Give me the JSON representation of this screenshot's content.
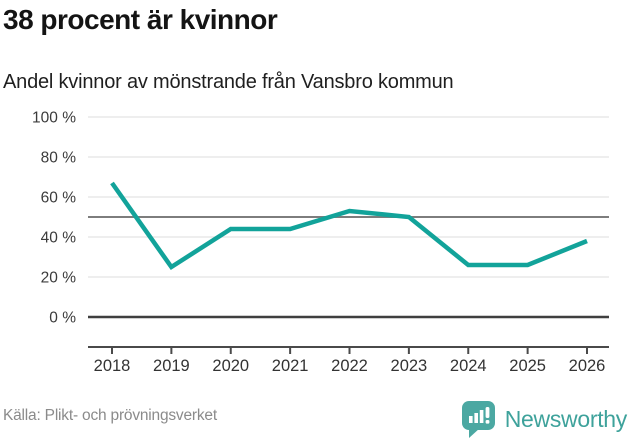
{
  "header": {
    "title": "38 procent är kvinnor",
    "subtitle": "Andel kvinnor av mönstrande från Vansbro kommun"
  },
  "footer": {
    "source": "Källa: Plikt- och prövningsverket",
    "brand": "Newsworthy",
    "brand_icon": "bar-chart-badge-icon"
  },
  "colors": {
    "line": "#12A39A",
    "grid_light": "#e3e3e3",
    "grid_mid": "#7d7d7d",
    "grid_zero": "#3f3f3f",
    "axis": "#4a4a4a",
    "tick_label": "#3b3b3b",
    "brand_teal": "#4BA8A2",
    "brand_text": "#3EA29B",
    "title_text": "#141414",
    "source_text": "#8b8b8b"
  },
  "chart_data": {
    "type": "line",
    "title": "38 procent är kvinnor",
    "subtitle": "Andel kvinnor av mönstrande från Vansbro kommun",
    "categories": [
      "2018",
      "2019",
      "2020",
      "2021",
      "2022",
      "2023",
      "2024",
      "2025",
      "2026"
    ],
    "series": [
      {
        "name": "Andel kvinnor av mönstrande",
        "values": [
          67,
          25,
          44,
          44,
          53,
          50,
          26,
          26,
          38
        ]
      }
    ],
    "unit": "%",
    "ylim": [
      0,
      100
    ],
    "yticks": [
      0,
      20,
      40,
      60,
      80,
      100
    ],
    "ytick_labels": [
      "0 %",
      "20 %",
      "40 %",
      "60 %",
      "80 %",
      "100 %"
    ],
    "reference_line": 50,
    "grid": "horizontal",
    "legend": "none",
    "source": "Källa: Plikt- och prövningsverket"
  }
}
